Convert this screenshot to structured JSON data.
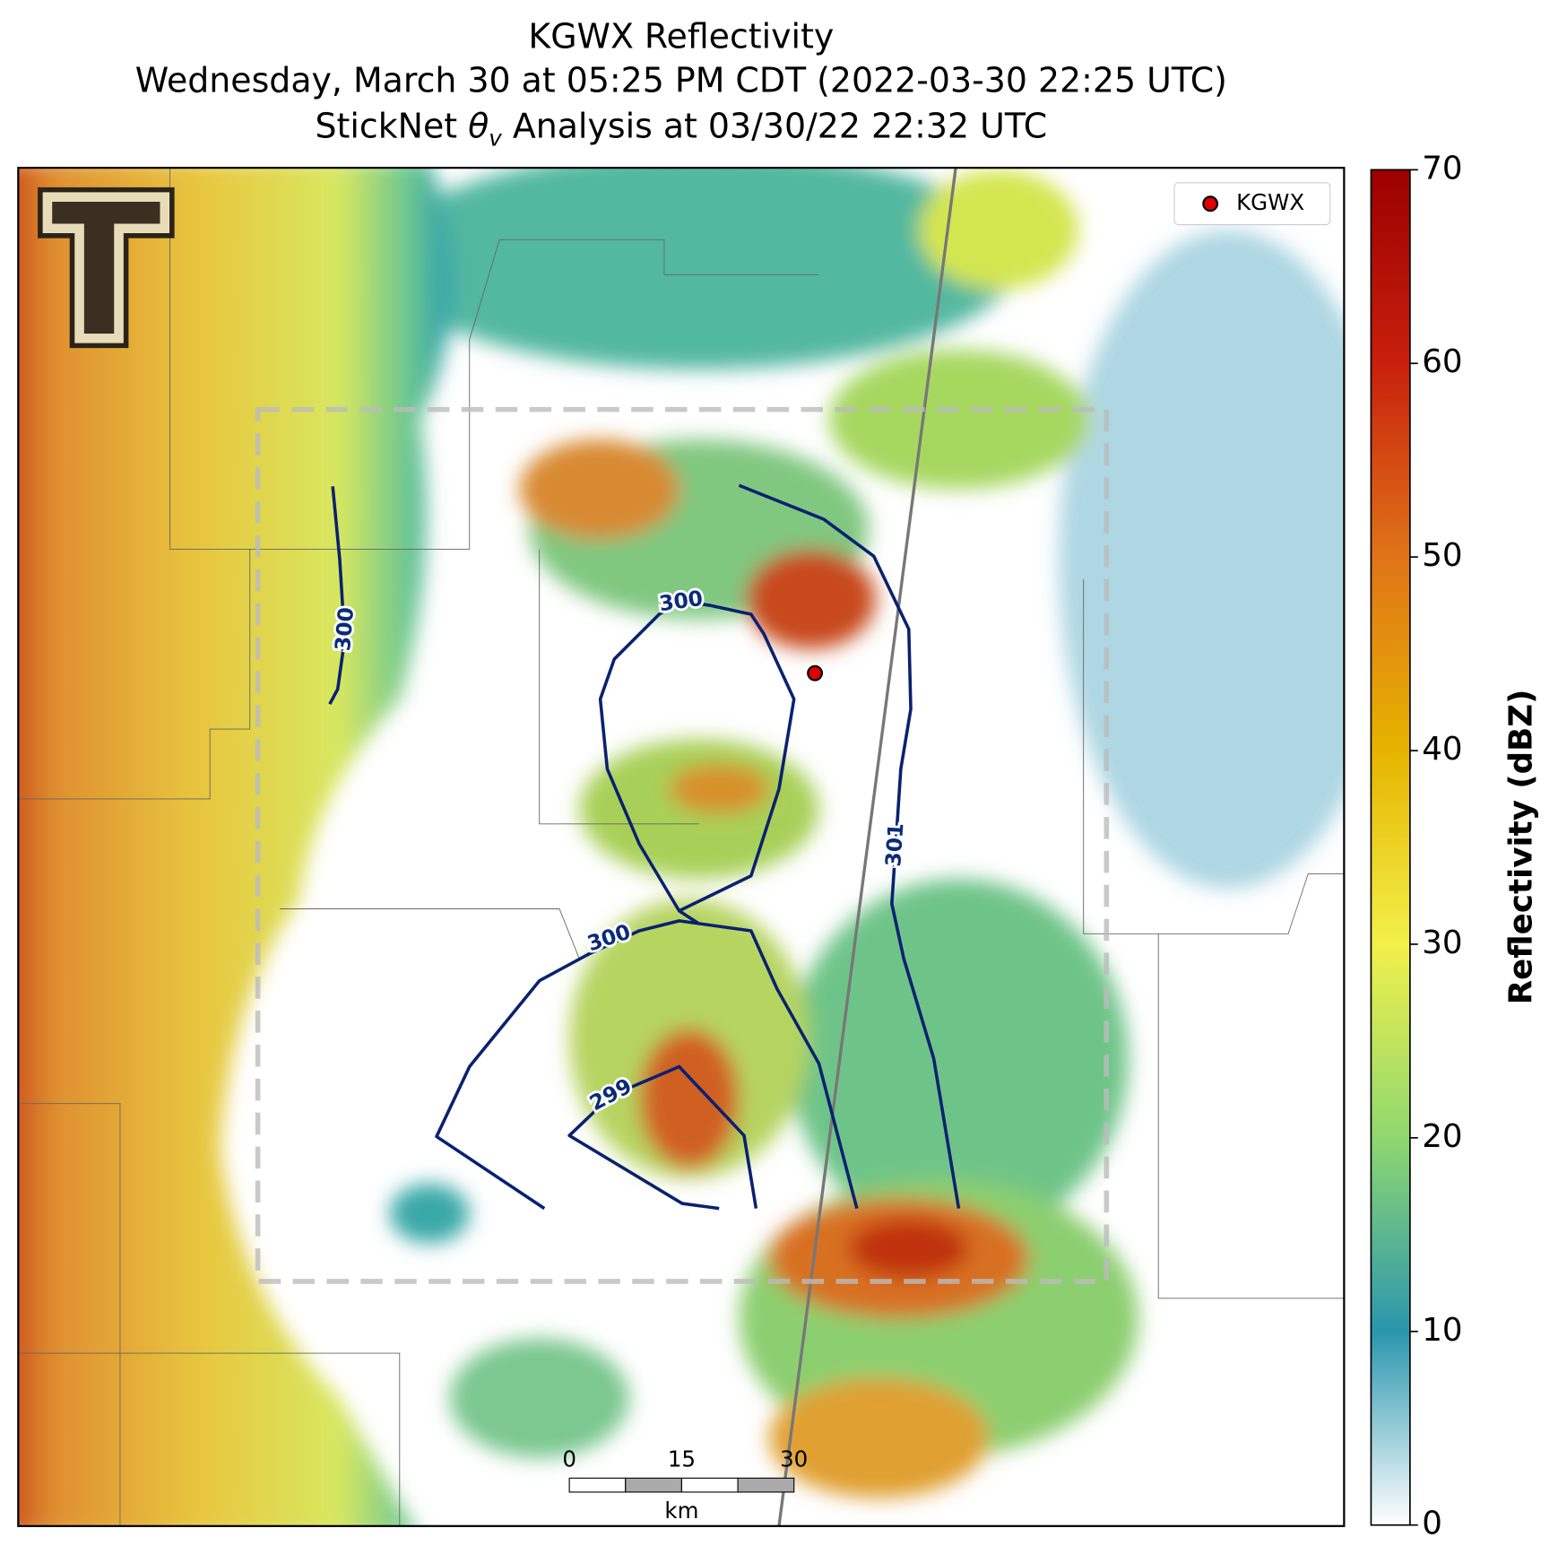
{
  "title": {
    "lines": [
      "KGWX Reflectivity",
      "Wednesday, March 30 at 05:25 PM CDT (2022-03-30 22:25 UTC)"
    ],
    "analysis": {
      "prefix": "StickNet ",
      "symbol": "θ",
      "subscript": "v",
      "suffix": " Analysis at 03/30/22 22:32 UTC"
    }
  },
  "legend": "KGWX",
  "contours": [
    {
      "value": 300
    },
    {
      "value": 300
    },
    {
      "value": 300
    },
    {
      "value": 299
    },
    {
      "value": 301
    }
  ],
  "colorbar": {
    "label": "Reflectivity (dBZ)",
    "lim": [
      0,
      70
    ],
    "ticks": [
      0,
      10,
      20,
      30,
      40,
      50,
      60,
      70
    ]
  },
  "scale_bar": {
    "ticks": [
      0,
      15,
      30
    ],
    "unit": "km"
  }
}
